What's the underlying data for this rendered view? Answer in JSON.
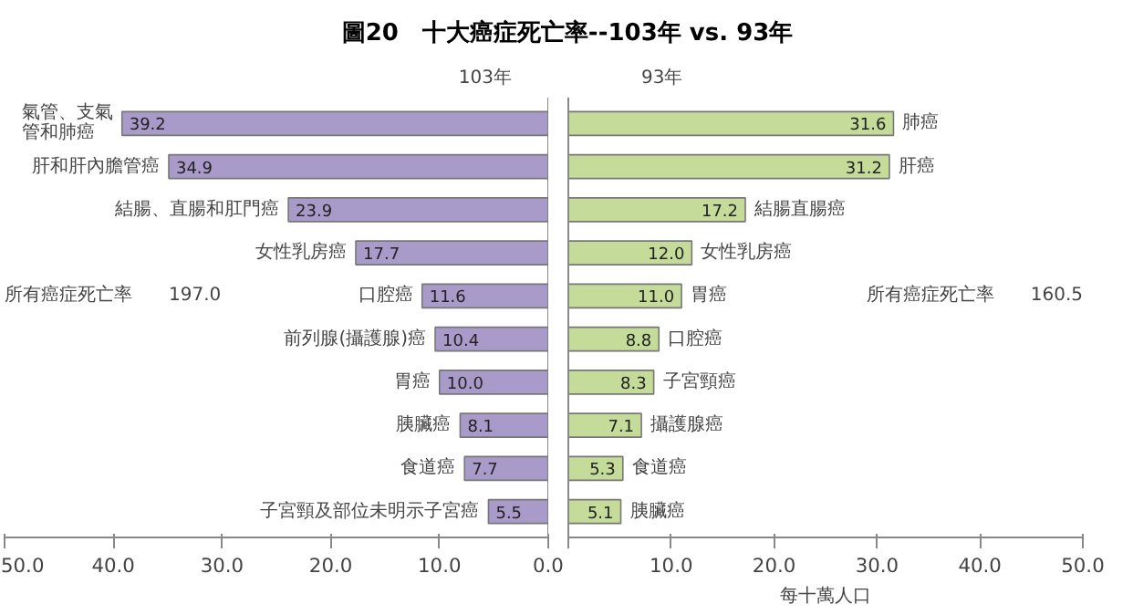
{
  "chart_data": [
    {
      "type": "bar",
      "orientation": "horizontal",
      "title": "圖20　十大癌症死亡率--103年 vs. 93年",
      "subtitle": "103年",
      "categories": [
        "氣管、支氣管和肺癌",
        "肝和肝內膽管癌",
        "結腸、直腸和肛門癌",
        "女性乳房癌",
        "口腔癌",
        "前列腺(攝護腺)癌",
        "胃癌",
        "胰臟癌",
        "食道癌",
        "子宮頸及部位未明示子宮癌"
      ],
      "series": [
        {
          "color": "#a99bc9",
          "values": [
            39.2,
            34.9,
            23.9,
            17.7,
            11.6,
            10.4,
            10.0,
            8.1,
            7.7,
            5.5
          ],
          "value_labels": [
            "39.2",
            "34.9",
            "23.9",
            "17.7",
            "11.6",
            "10.4",
            "10.0",
            "8.1",
            "7.7",
            "5.5"
          ]
        }
      ],
      "xlim": [
        50,
        0
      ],
      "xticks": [
        {
          "value": 50,
          "label": "50.0"
        },
        {
          "value": 40,
          "label": "40.0"
        },
        {
          "value": 30,
          "label": "30.0"
        },
        {
          "value": 20,
          "label": "20.0"
        },
        {
          "value": 10,
          "label": "10.0"
        },
        {
          "value": 0,
          "label": "0.0"
        }
      ],
      "annotations": [
        "所有癌症死亡率　　197.0"
      ],
      "grid": false,
      "tick_labels": "x"
    },
    {
      "type": "bar",
      "orientation": "horizontal",
      "subtitle": "93年",
      "xlabel": "每十萬人口",
      "categories": [
        "肺癌",
        "肝癌",
        "結腸直腸癌",
        "女性乳房癌",
        "胃癌",
        "口腔癌",
        "子宮頸癌",
        "攝護腺癌",
        "食道癌",
        "胰臟癌"
      ],
      "series": [
        {
          "color": "#c5db9a",
          "values": [
            31.6,
            31.2,
            17.2,
            12.0,
            11.0,
            8.8,
            8.3,
            7.1,
            5.3,
            5.1
          ],
          "value_labels": [
            "31.6",
            "31.2",
            "17.2",
            "12.0",
            "11.0",
            "8.8",
            "8.3",
            "7.1",
            "5.3",
            "5.1"
          ]
        }
      ],
      "xlim": [
        0,
        50
      ],
      "xticks": [
        {
          "value": 0,
          "label": null
        },
        {
          "value": 10,
          "label": "10.0"
        },
        {
          "value": 20,
          "label": "20.0"
        },
        {
          "value": 30,
          "label": "30.0"
        },
        {
          "value": 40,
          "label": "40.0"
        },
        {
          "value": 50,
          "label": "50.0"
        }
      ],
      "annotations": [
        "所有癌症死亡率　　160.5"
      ],
      "grid": false,
      "tick_labels": "x"
    }
  ]
}
